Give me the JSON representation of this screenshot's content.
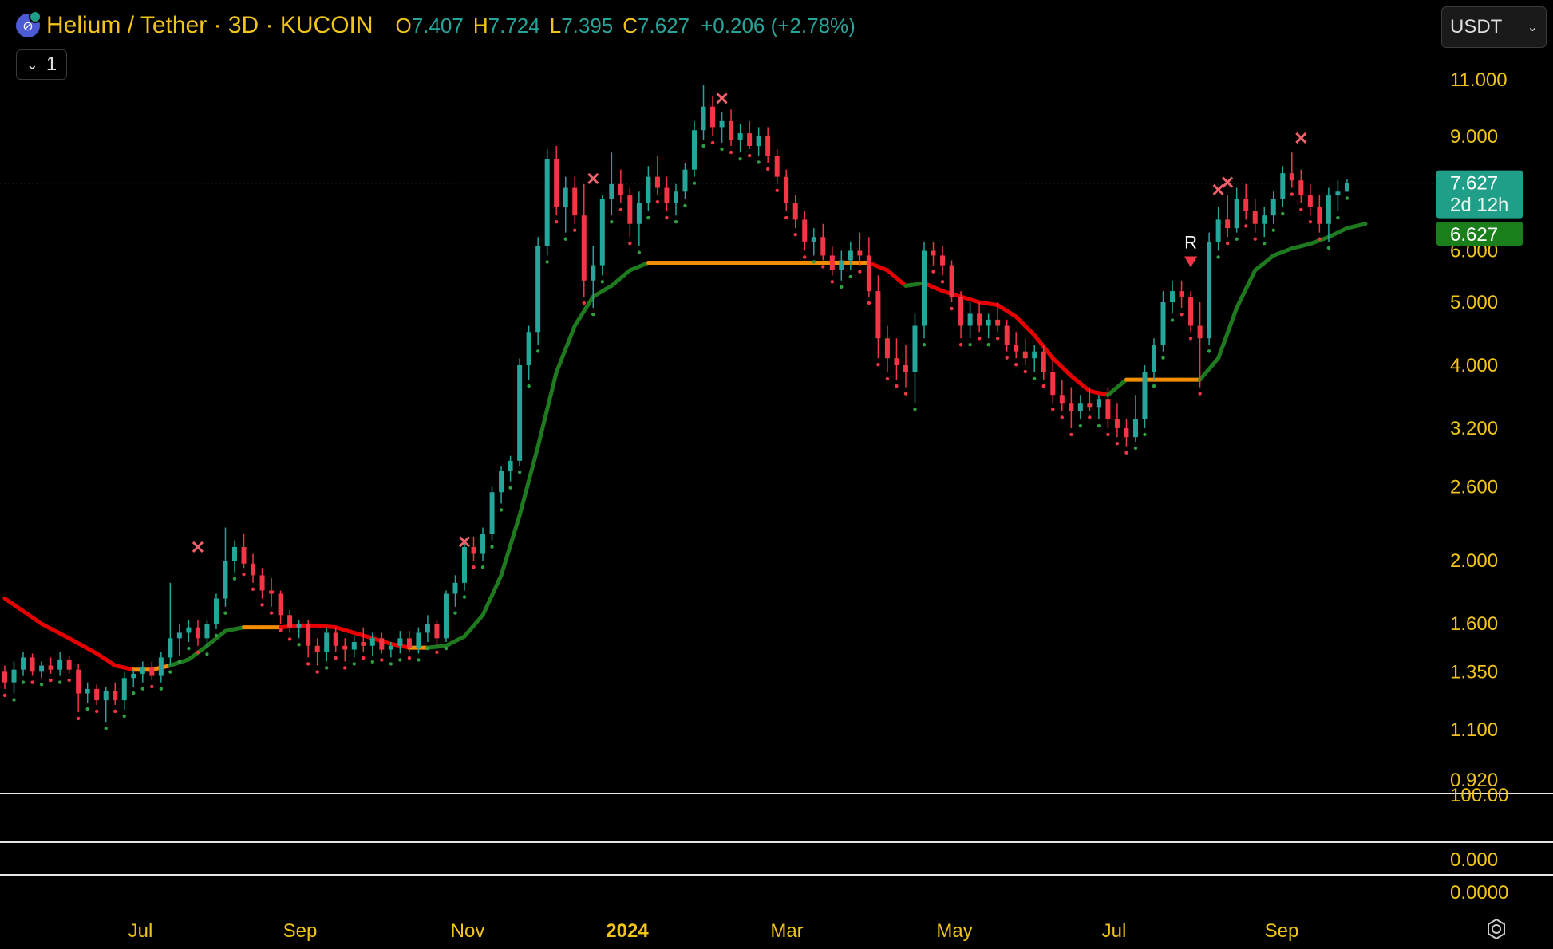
{
  "header": {
    "symbol": "Helium / Tether · 3D · KUCOIN",
    "o_label": "O",
    "o_value": "7.407",
    "h_label": "H",
    "h_value": "7.724",
    "l_label": "L",
    "l_value": "7.395",
    "c_label": "C",
    "c_value": "7.627",
    "change": "+0.206 (+2.78%)"
  },
  "controls": {
    "collapse_count": "1",
    "currency": "USDT"
  },
  "colors": {
    "up": "#26a69a",
    "down": "#f23645",
    "uptrend": "#1f7a1f",
    "downtrend": "#e60000",
    "neutral": "#f28c00",
    "axis_text": "#f0c419",
    "last_price_bg": "#1f9e88",
    "indicator_bg": "#1a7f1a"
  },
  "chart_data": {
    "type": "candlestick",
    "scale": "log",
    "ylim": [
      0.9,
      12
    ],
    "y_ticks": [
      "11.000",
      "9.000",
      "6.000",
      "5.000",
      "4.000",
      "3.200",
      "2.600",
      "2.000",
      "1.600",
      "1.350",
      "1.100",
      "0.920"
    ],
    "x_ticks": [
      "Jul",
      "Sep",
      "Nov",
      "2024",
      "Mar",
      "May",
      "Jul",
      "Sep"
    ],
    "last_price": {
      "value": 7.627,
      "label": "7.627",
      "countdown": "2d 12h"
    },
    "indicator_value": {
      "value": 6.627,
      "label": "6.627"
    },
    "trend_line": [
      [
        0,
        1.75
      ],
      [
        4,
        1.6
      ],
      [
        7,
        1.52
      ],
      [
        10,
        1.44
      ],
      [
        12,
        1.38
      ],
      [
        14,
        1.36
      ],
      [
        16,
        1.36
      ],
      [
        18,
        1.38
      ],
      [
        20,
        1.41
      ],
      [
        22,
        1.48
      ],
      [
        24,
        1.56
      ],
      [
        26,
        1.58
      ],
      [
        28,
        1.58
      ],
      [
        30,
        1.58
      ],
      [
        32,
        1.59
      ],
      [
        34,
        1.59
      ],
      [
        36,
        1.58
      ],
      [
        38,
        1.55
      ],
      [
        40,
        1.52
      ],
      [
        42,
        1.49
      ],
      [
        44,
        1.47
      ],
      [
        46,
        1.47
      ],
      [
        48,
        1.48
      ],
      [
        50,
        1.53
      ],
      [
        52,
        1.65
      ],
      [
        54,
        1.9
      ],
      [
        56,
        2.35
      ],
      [
        58,
        3.0
      ],
      [
        60,
        3.9
      ],
      [
        62,
        4.6
      ],
      [
        64,
        5.1
      ],
      [
        66,
        5.3
      ],
      [
        68,
        5.6
      ],
      [
        70,
        5.75
      ],
      [
        74,
        5.75
      ],
      [
        78,
        5.75
      ],
      [
        82,
        5.75
      ],
      [
        86,
        5.75
      ],
      [
        90,
        5.75
      ],
      [
        94,
        5.75
      ],
      [
        96,
        5.6
      ],
      [
        98,
        5.3
      ],
      [
        100,
        5.35
      ],
      [
        102,
        5.2
      ],
      [
        104,
        5.1
      ],
      [
        106,
        5.0
      ],
      [
        108,
        4.95
      ],
      [
        110,
        4.75
      ],
      [
        112,
        4.45
      ],
      [
        114,
        4.1
      ],
      [
        116,
        3.85
      ],
      [
        118,
        3.65
      ],
      [
        120,
        3.6
      ],
      [
        122,
        3.8
      ],
      [
        124,
        3.8
      ],
      [
        128,
        3.8
      ],
      [
        130,
        3.8
      ],
      [
        132,
        4.1
      ],
      [
        134,
        4.9
      ],
      [
        136,
        5.6
      ],
      [
        138,
        5.9
      ],
      [
        140,
        6.05
      ],
      [
        142,
        6.15
      ],
      [
        144,
        6.3
      ],
      [
        146,
        6.5
      ],
      [
        148,
        6.6
      ]
    ],
    "trend_colors": [
      {
        "from": 0,
        "to": 14,
        "c": "down"
      },
      {
        "from": 14,
        "to": 18,
        "c": "neutral"
      },
      {
        "from": 18,
        "to": 26,
        "c": "up"
      },
      {
        "from": 26,
        "to": 30,
        "c": "neutral"
      },
      {
        "from": 30,
        "to": 44,
        "c": "down"
      },
      {
        "from": 44,
        "to": 46,
        "c": "neutral"
      },
      {
        "from": 46,
        "to": 70,
        "c": "up"
      },
      {
        "from": 70,
        "to": 94,
        "c": "neutral"
      },
      {
        "from": 94,
        "to": 98,
        "c": "down"
      },
      {
        "from": 98,
        "to": 100,
        "c": "up"
      },
      {
        "from": 100,
        "to": 120,
        "c": "down"
      },
      {
        "from": 120,
        "to": 122,
        "c": "up"
      },
      {
        "from": 122,
        "to": 130,
        "c": "neutral"
      },
      {
        "from": 130,
        "to": 148,
        "c": "up"
      }
    ],
    "candles": [
      [
        1.35,
        1.38,
        1.27,
        1.3
      ],
      [
        1.3,
        1.4,
        1.25,
        1.36
      ],
      [
        1.36,
        1.45,
        1.33,
        1.42
      ],
      [
        1.42,
        1.44,
        1.33,
        1.35
      ],
      [
        1.35,
        1.4,
        1.32,
        1.38
      ],
      [
        1.38,
        1.42,
        1.34,
        1.36
      ],
      [
        1.36,
        1.45,
        1.33,
        1.41
      ],
      [
        1.41,
        1.43,
        1.34,
        1.36
      ],
      [
        1.36,
        1.39,
        1.17,
        1.25
      ],
      [
        1.25,
        1.3,
        1.21,
        1.27
      ],
      [
        1.27,
        1.29,
        1.2,
        1.22
      ],
      [
        1.22,
        1.28,
        1.13,
        1.26
      ],
      [
        1.26,
        1.3,
        1.2,
        1.22
      ],
      [
        1.22,
        1.35,
        1.18,
        1.32
      ],
      [
        1.32,
        1.36,
        1.28,
        1.34
      ],
      [
        1.34,
        1.4,
        1.3,
        1.37
      ],
      [
        1.37,
        1.4,
        1.31,
        1.33
      ],
      [
        1.33,
        1.45,
        1.3,
        1.42
      ],
      [
        1.42,
        1.85,
        1.38,
        1.52
      ],
      [
        1.52,
        1.6,
        1.43,
        1.55
      ],
      [
        1.55,
        1.62,
        1.5,
        1.58
      ],
      [
        1.58,
        1.62,
        1.48,
        1.52
      ],
      [
        1.52,
        1.62,
        1.47,
        1.6
      ],
      [
        1.6,
        1.78,
        1.57,
        1.75
      ],
      [
        1.75,
        2.25,
        1.7,
        2.0
      ],
      [
        2.0,
        2.15,
        1.92,
        2.1
      ],
      [
        2.1,
        2.2,
        1.95,
        1.98
      ],
      [
        1.98,
        2.05,
        1.85,
        1.9
      ],
      [
        1.9,
        1.95,
        1.75,
        1.8
      ],
      [
        1.8,
        1.88,
        1.7,
        1.78
      ],
      [
        1.78,
        1.8,
        1.6,
        1.65
      ],
      [
        1.65,
        1.68,
        1.55,
        1.58
      ],
      [
        1.58,
        1.62,
        1.52,
        1.6
      ],
      [
        1.6,
        1.62,
        1.42,
        1.48
      ],
      [
        1.48,
        1.52,
        1.38,
        1.45
      ],
      [
        1.45,
        1.58,
        1.4,
        1.55
      ],
      [
        1.55,
        1.58,
        1.45,
        1.48
      ],
      [
        1.48,
        1.52,
        1.4,
        1.46
      ],
      [
        1.46,
        1.53,
        1.42,
        1.5
      ],
      [
        1.5,
        1.58,
        1.45,
        1.48
      ],
      [
        1.48,
        1.55,
        1.43,
        1.52
      ],
      [
        1.52,
        1.55,
        1.44,
        1.46
      ],
      [
        1.46,
        1.5,
        1.42,
        1.48
      ],
      [
        1.48,
        1.56,
        1.44,
        1.52
      ],
      [
        1.52,
        1.56,
        1.45,
        1.47
      ],
      [
        1.47,
        1.58,
        1.44,
        1.55
      ],
      [
        1.55,
        1.65,
        1.5,
        1.6
      ],
      [
        1.6,
        1.62,
        1.48,
        1.52
      ],
      [
        1.52,
        1.8,
        1.5,
        1.78
      ],
      [
        1.78,
        1.9,
        1.7,
        1.85
      ],
      [
        1.85,
        2.15,
        1.8,
        2.1
      ],
      [
        2.1,
        2.18,
        2.0,
        2.05
      ],
      [
        2.05,
        2.25,
        2.0,
        2.2
      ],
      [
        2.2,
        2.6,
        2.15,
        2.55
      ],
      [
        2.55,
        2.8,
        2.45,
        2.75
      ],
      [
        2.75,
        2.9,
        2.65,
        2.85
      ],
      [
        2.85,
        4.1,
        2.8,
        4.0
      ],
      [
        4.0,
        4.6,
        3.8,
        4.5
      ],
      [
        4.5,
        6.3,
        4.3,
        6.1
      ],
      [
        6.1,
        8.6,
        5.9,
        8.3
      ],
      [
        8.3,
        8.7,
        6.8,
        7.0
      ],
      [
        7.0,
        7.8,
        6.4,
        7.5
      ],
      [
        7.5,
        7.8,
        6.6,
        6.8
      ],
      [
        6.8,
        7.6,
        5.1,
        5.4
      ],
      [
        5.4,
        6.1,
        4.9,
        5.7
      ],
      [
        5.7,
        7.3,
        5.5,
        7.2
      ],
      [
        7.2,
        8.5,
        6.8,
        7.6
      ],
      [
        7.6,
        8.0,
        7.1,
        7.3
      ],
      [
        7.3,
        7.5,
        6.3,
        6.6
      ],
      [
        6.6,
        7.4,
        6.1,
        7.1
      ],
      [
        7.1,
        8.1,
        6.9,
        7.8
      ],
      [
        7.8,
        8.4,
        7.3,
        7.5
      ],
      [
        7.5,
        7.8,
        6.9,
        7.1
      ],
      [
        7.1,
        7.6,
        6.8,
        7.4
      ],
      [
        7.4,
        8.2,
        7.2,
        8.0
      ],
      [
        8.0,
        9.5,
        7.8,
        9.2
      ],
      [
        9.2,
        10.8,
        8.9,
        10.0
      ],
      [
        10.0,
        10.4,
        9.0,
        9.3
      ],
      [
        9.3,
        9.8,
        8.8,
        9.5
      ],
      [
        9.5,
        9.9,
        8.7,
        8.9
      ],
      [
        8.9,
        9.4,
        8.5,
        9.1
      ],
      [
        9.1,
        9.5,
        8.6,
        8.7
      ],
      [
        8.7,
        9.3,
        8.4,
        9.0
      ],
      [
        9.0,
        9.3,
        8.2,
        8.4
      ],
      [
        8.4,
        8.6,
        7.6,
        7.8
      ],
      [
        7.8,
        8.0,
        6.9,
        7.1
      ],
      [
        7.1,
        7.3,
        6.5,
        6.7
      ],
      [
        6.7,
        6.9,
        6.0,
        6.2
      ],
      [
        6.2,
        6.5,
        5.9,
        6.3
      ],
      [
        6.3,
        6.6,
        5.8,
        5.9
      ],
      [
        5.9,
        6.1,
        5.5,
        5.6
      ],
      [
        5.6,
        6.0,
        5.4,
        5.8
      ],
      [
        5.8,
        6.2,
        5.6,
        6.0
      ],
      [
        6.0,
        6.4,
        5.7,
        5.9
      ],
      [
        5.9,
        6.3,
        5.1,
        5.2
      ],
      [
        5.2,
        5.5,
        4.1,
        4.4
      ],
      [
        4.4,
        4.6,
        3.9,
        4.1
      ],
      [
        4.1,
        4.4,
        3.8,
        4.0
      ],
      [
        4.0,
        4.3,
        3.7,
        3.9
      ],
      [
        3.9,
        4.8,
        3.5,
        4.6
      ],
      [
        4.6,
        6.2,
        4.4,
        6.0
      ],
      [
        6.0,
        6.2,
        5.7,
        5.9
      ],
      [
        5.9,
        6.1,
        5.5,
        5.7
      ],
      [
        5.7,
        5.8,
        5.0,
        5.1
      ],
      [
        5.1,
        5.2,
        4.4,
        4.6
      ],
      [
        4.6,
        5.0,
        4.4,
        4.8
      ],
      [
        4.8,
        5.0,
        4.5,
        4.6
      ],
      [
        4.6,
        4.8,
        4.4,
        4.7
      ],
      [
        4.7,
        5.0,
        4.5,
        4.6
      ],
      [
        4.6,
        4.7,
        4.2,
        4.3
      ],
      [
        4.3,
        4.5,
        4.1,
        4.2
      ],
      [
        4.2,
        4.4,
        4.0,
        4.1
      ],
      [
        4.1,
        4.3,
        3.9,
        4.2
      ],
      [
        4.2,
        4.3,
        3.8,
        3.9
      ],
      [
        3.9,
        4.1,
        3.5,
        3.6
      ],
      [
        3.6,
        3.8,
        3.4,
        3.5
      ],
      [
        3.5,
        3.7,
        3.2,
        3.4
      ],
      [
        3.4,
        3.6,
        3.3,
        3.5
      ],
      [
        3.5,
        3.7,
        3.4,
        3.45
      ],
      [
        3.45,
        3.6,
        3.3,
        3.55
      ],
      [
        3.55,
        3.7,
        3.2,
        3.3
      ],
      [
        3.3,
        3.5,
        3.1,
        3.2
      ],
      [
        3.2,
        3.3,
        3.0,
        3.1
      ],
      [
        3.1,
        3.6,
        3.05,
        3.3
      ],
      [
        3.3,
        4.0,
        3.2,
        3.9
      ],
      [
        3.9,
        4.4,
        3.8,
        4.3
      ],
      [
        4.3,
        5.2,
        4.2,
        5.0
      ],
      [
        5.0,
        5.4,
        4.8,
        5.2
      ],
      [
        5.2,
        5.4,
        4.9,
        5.1
      ],
      [
        5.1,
        5.2,
        4.5,
        4.6
      ],
      [
        4.6,
        5.0,
        3.7,
        4.4
      ],
      [
        4.4,
        6.4,
        4.3,
        6.2
      ],
      [
        6.2,
        7.0,
        6.0,
        6.7
      ],
      [
        6.7,
        7.3,
        6.3,
        6.5
      ],
      [
        6.5,
        7.5,
        6.4,
        7.2
      ],
      [
        7.2,
        7.6,
        6.7,
        6.9
      ],
      [
        6.9,
        7.2,
        6.4,
        6.6
      ],
      [
        6.6,
        7.0,
        6.3,
        6.8
      ],
      [
        6.8,
        7.4,
        6.6,
        7.2
      ],
      [
        7.2,
        8.1,
        7.0,
        7.9
      ],
      [
        7.9,
        8.5,
        7.5,
        7.7
      ],
      [
        7.7,
        8.0,
        7.1,
        7.3
      ],
      [
        7.3,
        7.6,
        6.8,
        7.0
      ],
      [
        7.0,
        7.3,
        6.4,
        6.6
      ],
      [
        6.6,
        7.5,
        6.2,
        7.3
      ],
      [
        7.3,
        7.7,
        6.9,
        7.4
      ],
      [
        7.4,
        7.724,
        7.395,
        7.627
      ]
    ],
    "markers": [
      {
        "i": 21,
        "type": "cross",
        "y": 2.1
      },
      {
        "i": 50,
        "type": "cross",
        "y": 2.14
      },
      {
        "i": 64,
        "type": "cross",
        "y": 7.75
      },
      {
        "i": 78,
        "type": "cross",
        "y": 10.3
      },
      {
        "i": 129,
        "type": "arrow",
        "y": 5.75,
        "label": "R"
      },
      {
        "i": 132,
        "type": "cross",
        "y": 7.45
      },
      {
        "i": 133,
        "type": "cross",
        "y": 7.65
      },
      {
        "i": 141,
        "type": "cross",
        "y": 8.95
      }
    ],
    "lower_axis": [
      "100.00",
      "0.000",
      "0.0000"
    ]
  }
}
